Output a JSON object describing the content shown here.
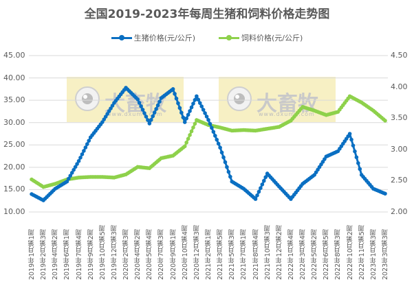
{
  "title": "全国2019-2023年每周生猪和饲料价格走势图",
  "legend": [
    {
      "label": "生猪价格(元/公斤)",
      "color": "#0a6fc2"
    },
    {
      "label": "饲料价格(元/公斤)",
      "color": "#8ed14b"
    }
  ],
  "left_axis": [
    "45.00",
    "40.00",
    "35.00",
    "30.00",
    "25.00",
    "20.00",
    "15.00",
    "10.00"
  ],
  "right_axis": [
    "4.50",
    "4.00",
    "3.50",
    "3.00",
    "2.50",
    "2.00"
  ],
  "watermark": {
    "brand": "大畜牧",
    "url": "www.dxumu.com"
  },
  "chart_data": {
    "type": "line",
    "title": "全国2019-2023年每周生猪和饲料价格走势图",
    "xlabel": "",
    "ylabel": "生猪价格(元/公斤)",
    "y2label": "饲料价格(元/公斤)",
    "ylim": [
      10,
      45
    ],
    "y2lim": [
      2.0,
      4.5
    ],
    "grid": true,
    "legend_position": "top",
    "categories": [
      "2019年1月第1周",
      "2019年2月第3周",
      "2019年4月第2周",
      "2019年6月第1周",
      "2019年7月第4周",
      "2019年9月第2周",
      "2019年10月第5周",
      "2019年12月第3周",
      "2020年2月第3周",
      "2020年4月第2周",
      "2020年5月第4周",
      "2020年7月第3周",
      "2020年9月第1周",
      "2020年10月第4周",
      "2020年12月第3周",
      "2021年2月第1周",
      "2021年3月第5周",
      "2021年5月第3周",
      "2021年7月第1周",
      "2021年8月第4周",
      "2021年10月第3周",
      "2021年12月第2周",
      "2022年1月第4周",
      "2022年3月第4周",
      "2022年5月第2周",
      "2022年6月第5周",
      "2022年8月第3周",
      "2022年10月第2周",
      "2022年11月第5周",
      "2023年1月第3周",
      "2023年3月第3周"
    ],
    "series": [
      {
        "name": "生猪价格(元/公斤)",
        "axis": "left",
        "color": "#0a6fc2",
        "values": [
          14.0,
          12.6,
          15.2,
          16.8,
          21.4,
          26.7,
          30.1,
          34.4,
          37.8,
          35.2,
          29.8,
          35.5,
          37.5,
          30.1,
          35.9,
          30.6,
          24.4,
          16.8,
          15.2,
          12.9,
          18.6,
          15.7,
          12.9,
          16.3,
          18.3,
          22.4,
          23.6,
          27.5,
          18.3,
          15.2,
          14.1
        ]
      },
      {
        "name": "饲料价格(元/公斤)",
        "axis": "right",
        "color": "#8ed14b",
        "values": [
          2.52,
          2.4,
          2.45,
          2.52,
          2.55,
          2.56,
          2.56,
          2.55,
          2.6,
          2.72,
          2.7,
          2.86,
          2.9,
          3.05,
          3.47,
          3.39,
          3.35,
          3.3,
          3.31,
          3.3,
          3.33,
          3.36,
          3.46,
          3.68,
          3.62,
          3.55,
          3.6,
          3.85,
          3.75,
          3.62,
          3.46
        ]
      }
    ]
  }
}
